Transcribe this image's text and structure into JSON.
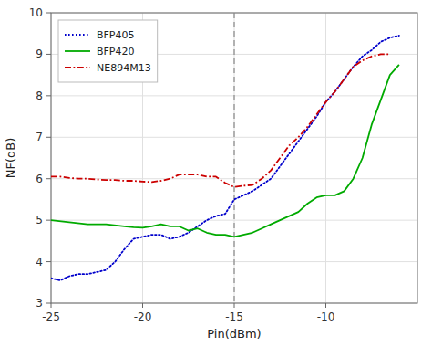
{
  "chart_data": {
    "type": "line",
    "x_label": "Pin(dBm)",
    "y_label": "NF(dB)",
    "xlim": [
      -25,
      -5
    ],
    "ylim": [
      3,
      10
    ],
    "xticks": [
      -25,
      -20,
      -15,
      -10
    ],
    "yticks": [
      3,
      4,
      5,
      6,
      7,
      8,
      9,
      10
    ],
    "grid": true,
    "legend": "upper left",
    "vlines": [
      -15
    ],
    "series": [
      {
        "name": "BFP405",
        "color": "#0000cc",
        "line_style": "dotted",
        "x": [
          -25,
          -24.5,
          -24,
          -23.5,
          -23,
          -22.5,
          -22,
          -21.5,
          -21,
          -20.5,
          -20,
          -19.5,
          -19,
          -18.5,
          -18,
          -17.5,
          -17,
          -16.5,
          -16,
          -15.5,
          -15,
          -14.5,
          -14,
          -13.5,
          -13,
          -12.5,
          -12,
          -11.5,
          -11,
          -10.5,
          -10,
          -9.5,
          -9,
          -8.5,
          -8,
          -7.5,
          -7,
          -6.5,
          -6
        ],
        "values": [
          3.6,
          3.55,
          3.65,
          3.7,
          3.7,
          3.75,
          3.8,
          4.0,
          4.3,
          4.55,
          4.6,
          4.65,
          4.65,
          4.55,
          4.6,
          4.7,
          4.85,
          5.0,
          5.1,
          5.15,
          5.5,
          5.6,
          5.7,
          5.85,
          6.0,
          6.3,
          6.6,
          6.9,
          7.2,
          7.5,
          7.85,
          8.1,
          8.4,
          8.7,
          8.95,
          9.1,
          9.3,
          9.4,
          9.45
        ]
      },
      {
        "name": "BFP420",
        "color": "#00aa00",
        "line_style": "solid",
        "x": [
          -25,
          -24,
          -23,
          -22,
          -21,
          -20.5,
          -20,
          -19.5,
          -19,
          -18.5,
          -18,
          -17.5,
          -17,
          -16.5,
          -16,
          -15.5,
          -15,
          -14.5,
          -14,
          -13.5,
          -13,
          -12.5,
          -12,
          -11.5,
          -11,
          -10.5,
          -10,
          -9.5,
          -9,
          -8.5,
          -8,
          -7.5,
          -7,
          -6.5,
          -6
        ],
        "values": [
          5.0,
          4.95,
          4.9,
          4.9,
          4.85,
          4.83,
          4.82,
          4.85,
          4.9,
          4.85,
          4.85,
          4.75,
          4.8,
          4.7,
          4.65,
          4.65,
          4.6,
          4.65,
          4.7,
          4.8,
          4.9,
          5.0,
          5.1,
          5.2,
          5.4,
          5.55,
          5.6,
          5.6,
          5.7,
          6.0,
          6.5,
          7.3,
          7.9,
          8.5,
          8.75
        ]
      },
      {
        "name": "NE894M13",
        "color": "#cc0000",
        "line_style": "dashdot",
        "x": [
          -25,
          -24.5,
          -24,
          -23.5,
          -23,
          -22.5,
          -22,
          -21.5,
          -21,
          -20.5,
          -20,
          -19.5,
          -19,
          -18.5,
          -18,
          -17.5,
          -17,
          -16.5,
          -16,
          -15.5,
          -15,
          -14.5,
          -14,
          -13.5,
          -13,
          -12.5,
          -12,
          -11.5,
          -11,
          -10.5,
          -10,
          -9.5,
          -9,
          -8.5,
          -8,
          -7.5,
          -7,
          -6.5
        ],
        "values": [
          6.05,
          6.05,
          6.02,
          6.0,
          6.0,
          5.98,
          5.97,
          5.97,
          5.95,
          5.95,
          5.93,
          5.92,
          5.95,
          6.0,
          6.1,
          6.1,
          6.1,
          6.05,
          6.05,
          5.9,
          5.8,
          5.83,
          5.85,
          6.0,
          6.2,
          6.5,
          6.8,
          7.0,
          7.25,
          7.55,
          7.85,
          8.1,
          8.4,
          8.7,
          8.85,
          8.95,
          9.0,
          9.0
        ]
      }
    ]
  }
}
